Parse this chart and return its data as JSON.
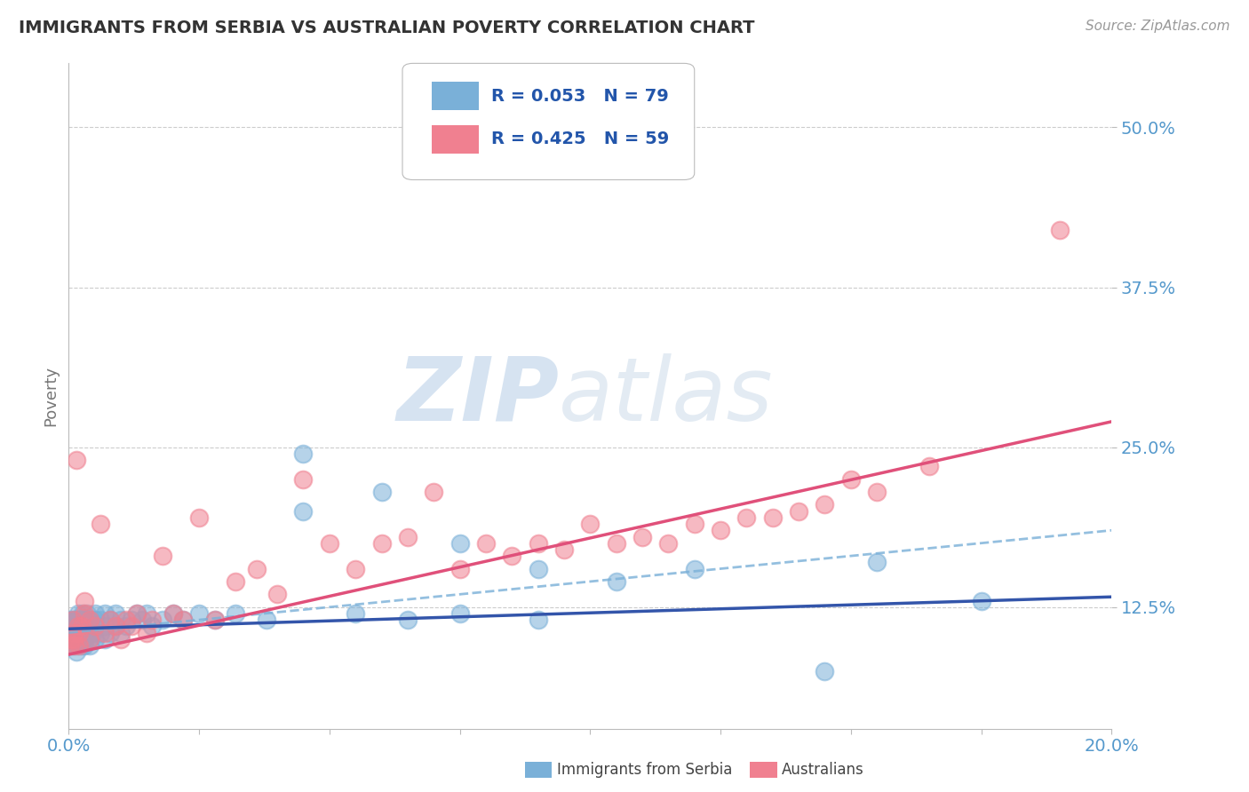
{
  "title": "IMMIGRANTS FROM SERBIA VS AUSTRALIAN POVERTY CORRELATION CHART",
  "source_text": "Source: ZipAtlas.com",
  "ylabel": "Poverty",
  "watermark": "ZIPatlas",
  "xlim": [
    0.0,
    0.2
  ],
  "ylim": [
    0.03,
    0.55
  ],
  "yticks": [
    0.125,
    0.25,
    0.375,
    0.5
  ],
  "ytick_labels": [
    "12.5%",
    "25.0%",
    "37.5%",
    "50.0%"
  ],
  "xticks": [
    0.0,
    0.025,
    0.05,
    0.075,
    0.1,
    0.125,
    0.15,
    0.175,
    0.2
  ],
  "xtick_labels": [
    "0.0%",
    "",
    "",
    "",
    "",
    "",
    "",
    "",
    "20.0%"
  ],
  "grid_color": "#cccccc",
  "bg_color": "#ffffff",
  "blue_scatter_color": "#7ab0d8",
  "pink_scatter_color": "#f08090",
  "blue_line_color": "#3355aa",
  "pink_line_color": "#e0507a",
  "dashed_line_color": "#7ab0d8",
  "title_color": "#333333",
  "axis_label_color": "#777777",
  "tick_label_color": "#5599cc",
  "blue_scatter_x": [
    0.0003,
    0.0005,
    0.0007,
    0.0008,
    0.001,
    0.001,
    0.001,
    0.0012,
    0.0013,
    0.0014,
    0.0015,
    0.0015,
    0.0016,
    0.0017,
    0.0018,
    0.0018,
    0.002,
    0.002,
    0.002,
    0.0022,
    0.0023,
    0.0024,
    0.0025,
    0.0025,
    0.0026,
    0.0027,
    0.003,
    0.003,
    0.003,
    0.0032,
    0.0033,
    0.0035,
    0.0036,
    0.004,
    0.004,
    0.004,
    0.0042,
    0.0045,
    0.005,
    0.005,
    0.005,
    0.006,
    0.006,
    0.007,
    0.007,
    0.007,
    0.008,
    0.008,
    0.009,
    0.009,
    0.01,
    0.01,
    0.011,
    0.012,
    0.013,
    0.014,
    0.015,
    0.016,
    0.018,
    0.02,
    0.022,
    0.025,
    0.028,
    0.032,
    0.038,
    0.045,
    0.055,
    0.065,
    0.075,
    0.09,
    0.045,
    0.06,
    0.075,
    0.09,
    0.105,
    0.12,
    0.145,
    0.155,
    0.175
  ],
  "blue_scatter_y": [
    0.115,
    0.095,
    0.105,
    0.1,
    0.105,
    0.1,
    0.095,
    0.115,
    0.11,
    0.09,
    0.115,
    0.1,
    0.095,
    0.115,
    0.11,
    0.12,
    0.115,
    0.1,
    0.105,
    0.11,
    0.105,
    0.115,
    0.1,
    0.095,
    0.12,
    0.11,
    0.115,
    0.1,
    0.095,
    0.11,
    0.105,
    0.115,
    0.12,
    0.1,
    0.095,
    0.11,
    0.115,
    0.105,
    0.115,
    0.1,
    0.12,
    0.105,
    0.115,
    0.1,
    0.12,
    0.11,
    0.105,
    0.115,
    0.11,
    0.12,
    0.115,
    0.105,
    0.11,
    0.115,
    0.12,
    0.115,
    0.12,
    0.11,
    0.115,
    0.12,
    0.115,
    0.12,
    0.115,
    0.12,
    0.115,
    0.245,
    0.12,
    0.115,
    0.12,
    0.115,
    0.2,
    0.215,
    0.175,
    0.155,
    0.145,
    0.155,
    0.075,
    0.16,
    0.13
  ],
  "pink_scatter_x": [
    0.0003,
    0.0005,
    0.0008,
    0.001,
    0.001,
    0.0012,
    0.0015,
    0.0018,
    0.002,
    0.002,
    0.0025,
    0.003,
    0.003,
    0.004,
    0.004,
    0.005,
    0.006,
    0.007,
    0.008,
    0.009,
    0.01,
    0.011,
    0.012,
    0.013,
    0.015,
    0.016,
    0.018,
    0.02,
    0.022,
    0.025,
    0.028,
    0.032,
    0.036,
    0.04,
    0.045,
    0.05,
    0.055,
    0.06,
    0.065,
    0.07,
    0.075,
    0.08,
    0.085,
    0.09,
    0.095,
    0.1,
    0.105,
    0.11,
    0.115,
    0.12,
    0.125,
    0.13,
    0.135,
    0.14,
    0.145,
    0.15,
    0.155,
    0.165,
    0.19
  ],
  "pink_scatter_y": [
    0.095,
    0.1,
    0.115,
    0.1,
    0.105,
    0.095,
    0.24,
    0.11,
    0.105,
    0.095,
    0.11,
    0.13,
    0.12,
    0.115,
    0.1,
    0.11,
    0.19,
    0.105,
    0.115,
    0.11,
    0.1,
    0.115,
    0.11,
    0.12,
    0.105,
    0.115,
    0.165,
    0.12,
    0.115,
    0.195,
    0.115,
    0.145,
    0.155,
    0.135,
    0.225,
    0.175,
    0.155,
    0.175,
    0.18,
    0.215,
    0.155,
    0.175,
    0.165,
    0.175,
    0.17,
    0.19,
    0.175,
    0.18,
    0.175,
    0.19,
    0.185,
    0.195,
    0.195,
    0.2,
    0.205,
    0.225,
    0.215,
    0.235,
    0.42
  ],
  "blue_trend_x": [
    0.0,
    0.2
  ],
  "blue_trend_y": [
    0.108,
    0.133
  ],
  "dashed_trend_x": [
    0.0,
    0.2
  ],
  "dashed_trend_y": [
    0.105,
    0.185
  ],
  "pink_trend_x": [
    0.0,
    0.2
  ],
  "pink_trend_y": [
    0.088,
    0.27
  ]
}
